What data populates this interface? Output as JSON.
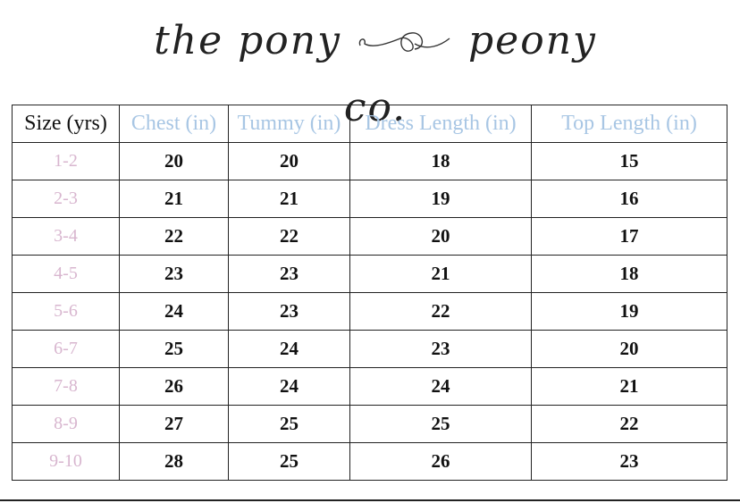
{
  "logo": {
    "text": "the pony & peony co.",
    "left": "the pony",
    "right": "peony co."
  },
  "colors": {
    "header_accent": "#a8c6e4",
    "size_accent": "#d8b6cf",
    "text": "#111111"
  },
  "table": {
    "headers": [
      "Size (yrs)",
      "Chest (in)",
      "Tummy (in)",
      "Dress Length (in)",
      "Top Length (in)"
    ],
    "rows": [
      [
        "1-2",
        "20",
        "20",
        "18",
        "15"
      ],
      [
        "2-3",
        "21",
        "21",
        "19",
        "16"
      ],
      [
        "3-4",
        "22",
        "22",
        "20",
        "17"
      ],
      [
        "4-5",
        "23",
        "23",
        "21",
        "18"
      ],
      [
        "5-6",
        "24",
        "23",
        "22",
        "19"
      ],
      [
        "6-7",
        "25",
        "24",
        "23",
        "20"
      ],
      [
        "7-8",
        "26",
        "24",
        "24",
        "21"
      ],
      [
        "8-9",
        "27",
        "25",
        "25",
        "22"
      ],
      [
        "9-10",
        "28",
        "25",
        "26",
        "23"
      ]
    ]
  }
}
